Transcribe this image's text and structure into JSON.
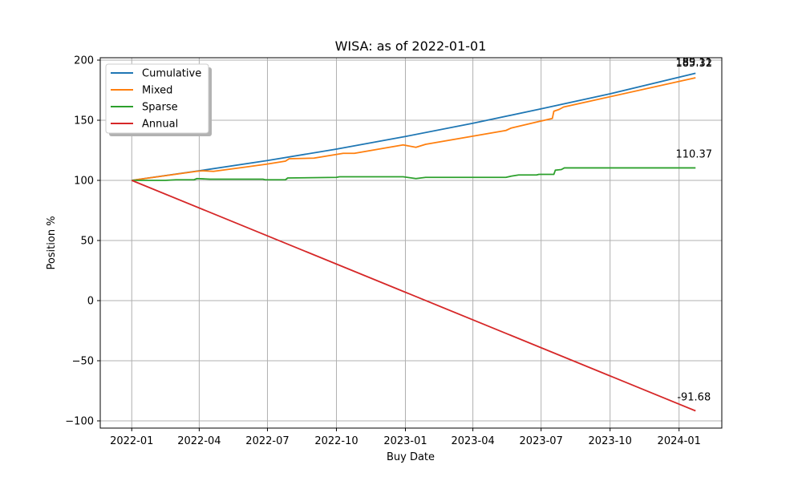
{
  "chart_data": {
    "type": "line",
    "title": "WISA: as of 2022-01-01",
    "xlabel": "Buy Date",
    "ylabel": "Position %",
    "x_range": [
      "2021-11-20",
      "2024-02-27"
    ],
    "ylim": [
      -106,
      202
    ],
    "x_ticks": [
      "2022-01-01",
      "2022-04-01",
      "2022-07-01",
      "2022-10-01",
      "2023-01-01",
      "2023-04-01",
      "2023-07-01",
      "2023-10-01",
      "2024-01-01"
    ],
    "x_tick_labels": [
      "2022-01",
      "2022-04",
      "2022-07",
      "2022-10",
      "2023-01",
      "2023-04",
      "2023-07",
      "2023-10",
      "2024-01"
    ],
    "y_ticks": [
      -100,
      -50,
      0,
      50,
      100,
      150,
      200
    ],
    "y_tick_labels": [
      "−100",
      "−50",
      "0",
      "50",
      "100",
      "150",
      "200"
    ],
    "grid": true,
    "legend_position": "top-left",
    "series": [
      {
        "name": "Cumulative",
        "color": "#1f77b4",
        "end_label": "189.11",
        "points": [
          [
            "2022-01-01",
            100
          ],
          [
            "2022-04-01",
            108
          ],
          [
            "2022-07-01",
            116.5
          ],
          [
            "2022-10-01",
            126
          ],
          [
            "2023-01-01",
            136.5
          ],
          [
            "2023-04-01",
            147.5
          ],
          [
            "2023-07-01",
            159.5
          ],
          [
            "2023-10-01",
            172
          ],
          [
            "2024-01-23",
            189.11
          ]
        ]
      },
      {
        "name": "Mixed",
        "color": "#ff7f0e",
        "end_label": "185.32",
        "points": [
          [
            "2022-01-01",
            100
          ],
          [
            "2022-03-28",
            107.5
          ],
          [
            "2022-04-06",
            108
          ],
          [
            "2022-04-20",
            107.5
          ],
          [
            "2022-06-01",
            111
          ],
          [
            "2022-06-30",
            113.5
          ],
          [
            "2022-07-25",
            116
          ],
          [
            "2022-07-30",
            118
          ],
          [
            "2022-09-01",
            118.5
          ],
          [
            "2022-10-10",
            122.5
          ],
          [
            "2022-10-25",
            122.5
          ],
          [
            "2022-12-29",
            129.5
          ],
          [
            "2023-01-15",
            127.5
          ],
          [
            "2023-01-28",
            130
          ],
          [
            "2023-05-15",
            141.5
          ],
          [
            "2023-05-22",
            143.5
          ],
          [
            "2023-06-25",
            148.5
          ],
          [
            "2023-07-16",
            151.5
          ],
          [
            "2023-07-18",
            157.5
          ],
          [
            "2023-07-25",
            159
          ],
          [
            "2023-07-31",
            161
          ],
          [
            "2024-01-23",
            185.32
          ]
        ]
      },
      {
        "name": "Sparse",
        "color": "#2ca02c",
        "end_label": "110.37",
        "points": [
          [
            "2022-01-01",
            100
          ],
          [
            "2022-02-15",
            100
          ],
          [
            "2022-03-01",
            100.5
          ],
          [
            "2022-03-25",
            100.5
          ],
          [
            "2022-03-29",
            101.5
          ],
          [
            "2022-04-15",
            101
          ],
          [
            "2022-06-25",
            101
          ],
          [
            "2022-06-28",
            100.5
          ],
          [
            "2022-07-25",
            100.5
          ],
          [
            "2022-07-28",
            102
          ],
          [
            "2022-10-01",
            102.5
          ],
          [
            "2022-10-05",
            103
          ],
          [
            "2022-12-29",
            103
          ],
          [
            "2023-01-15",
            101.5
          ],
          [
            "2023-01-28",
            102.5
          ],
          [
            "2023-05-15",
            102.5
          ],
          [
            "2023-05-22",
            103.5
          ],
          [
            "2023-06-01",
            104.5
          ],
          [
            "2023-06-25",
            104.5
          ],
          [
            "2023-06-28",
            105
          ],
          [
            "2023-07-18",
            105
          ],
          [
            "2023-07-20",
            108.5
          ],
          [
            "2023-07-28",
            109
          ],
          [
            "2023-08-01",
            110.37
          ],
          [
            "2024-01-23",
            110.37
          ]
        ]
      },
      {
        "name": "Annual",
        "color": "#d62728",
        "end_label": "-91.68",
        "points": [
          [
            "2022-01-01",
            100
          ],
          [
            "2024-01-23",
            -91.68
          ]
        ]
      }
    ]
  }
}
